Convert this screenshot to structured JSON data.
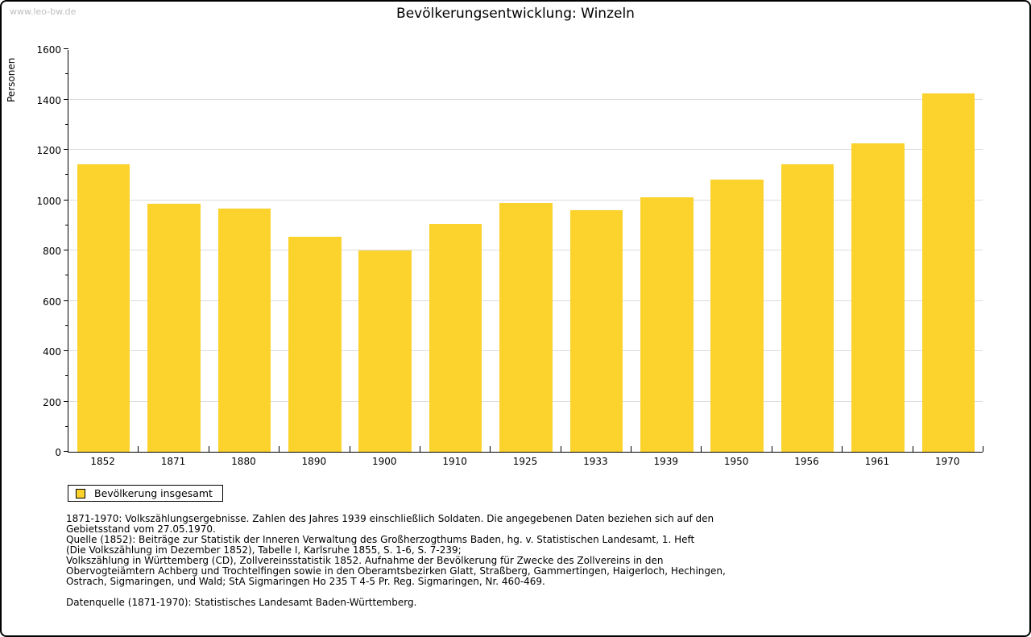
{
  "watermark": "www.leo-bw.de",
  "header": {
    "title": "Bevölkerungsentwicklung: Winzeln"
  },
  "chart_data": {
    "type": "bar",
    "title": "Bevölkerungsentwicklung: Winzeln",
    "categories": [
      "1852",
      "1871",
      "1880",
      "1890",
      "1900",
      "1910",
      "1925",
      "1933",
      "1939",
      "1950",
      "1956",
      "1961",
      "1970"
    ],
    "values": [
      1141,
      985,
      967,
      856,
      800,
      907,
      988,
      961,
      1010,
      1082,
      1143,
      1226,
      1423
    ],
    "series_name": "Bevölkerung insgesamt",
    "xlabel": "",
    "ylabel": "Personen",
    "ylim": [
      0,
      1600
    ],
    "ytick_major_step": 200,
    "ytick_minor_step": 100,
    "grid": true,
    "legend_position": "bottom-left",
    "bar_color": "#FCD22D",
    "grid_color": "#DCDCDC",
    "axis_color": "#000000"
  },
  "legend": {
    "label": "Bevölkerung insgesamt",
    "swatch_color": "#FCD22D"
  },
  "footnotes": {
    "block": [
      "1871-1970: Volkszählungsergebnisse. Zahlen des Jahres 1939 einschließlich Soldaten. Die angegebenen Daten beziehen sich auf den",
      "Gebietsstand vom 27.05.1970.",
      "Quelle (1852): Beiträge zur Statistik der Inneren Verwaltung des Großherzogthums Baden, hg. v. Statistischen Landesamt, 1. Heft",
      "(Die Volkszählung im Dezember 1852), Tabelle I, Karlsruhe 1855, S. 1-6, S. 7-239;",
      "Volkszählung in Württemberg (CD), Zollvereinsstatistik 1852. Aufnahme der Bevölkerung für Zwecke des Zollvereins in den",
      "Obervogteiämtern Achberg und Trochtelfingen sowie in den Oberamtsbezirken Glatt, Straßberg, Gammertingen, Haigerloch, Hechingen,",
      "Ostrach, Sigmaringen, und Wald; StA Sigmaringen Ho 235 T 4-5 Pr. Reg. Sigmaringen, Nr. 460-469."
    ],
    "datasource": "Datenquelle (1871-1970): Statistisches Landesamt Baden-Württemberg."
  }
}
